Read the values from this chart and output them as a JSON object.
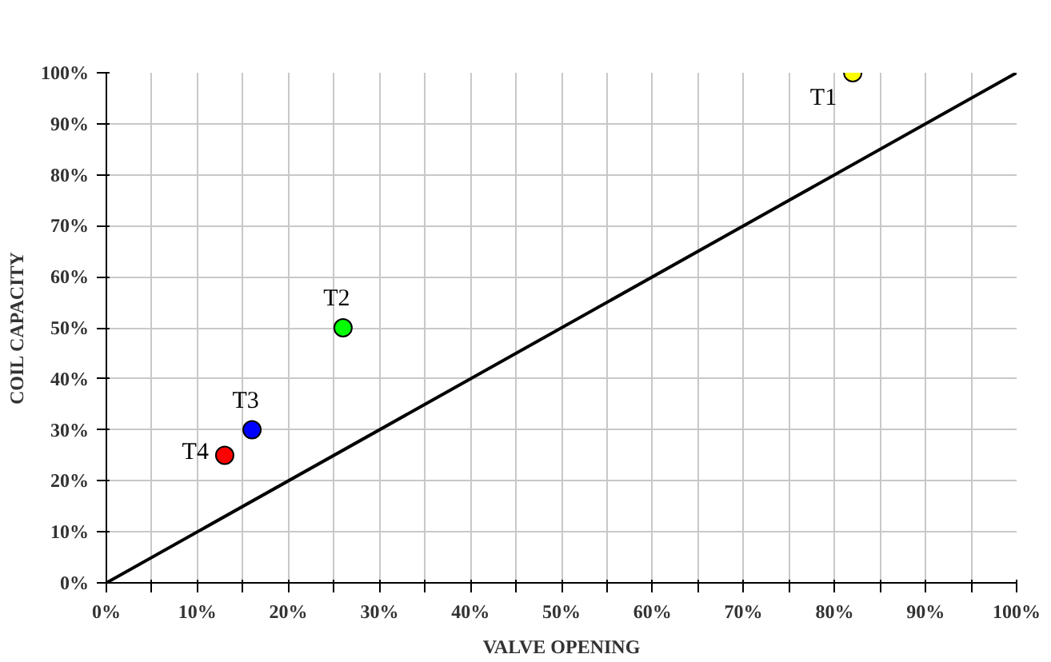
{
  "chart_data": {
    "type": "scatter",
    "xlabel": "VALVE OPENING",
    "ylabel": "COIL CAPACITY",
    "xlim": [
      0,
      100
    ],
    "ylim": [
      0,
      100
    ],
    "xticks": [
      {
        "value": 0,
        "label": "0%"
      },
      {
        "value": 5,
        "label": null
      },
      {
        "value": 10,
        "label": "10%"
      },
      {
        "value": 15,
        "label": null
      },
      {
        "value": 20,
        "label": "20%"
      },
      {
        "value": 25,
        "label": null
      },
      {
        "value": 30,
        "label": "30%"
      },
      {
        "value": 35,
        "label": null
      },
      {
        "value": 40,
        "label": "40%"
      },
      {
        "value": 45,
        "label": null
      },
      {
        "value": 50,
        "label": "50%"
      },
      {
        "value": 55,
        "label": null
      },
      {
        "value": 60,
        "label": "60%"
      },
      {
        "value": 65,
        "label": null
      },
      {
        "value": 70,
        "label": "70%"
      },
      {
        "value": 75,
        "label": null
      },
      {
        "value": 80,
        "label": "80%"
      },
      {
        "value": 85,
        "label": null
      },
      {
        "value": 90,
        "label": "90%"
      },
      {
        "value": 95,
        "label": null
      },
      {
        "value": 100,
        "label": "100%"
      }
    ],
    "yticks": [
      {
        "value": 0,
        "label": "0%"
      },
      {
        "value": 10,
        "label": "10%"
      },
      {
        "value": 20,
        "label": "20%"
      },
      {
        "value": 30,
        "label": "30%"
      },
      {
        "value": 40,
        "label": "40%"
      },
      {
        "value": 50,
        "label": "50%"
      },
      {
        "value": 60,
        "label": "60%"
      },
      {
        "value": 70,
        "label": "70%"
      },
      {
        "value": 80,
        "label": "80%"
      },
      {
        "value": 90,
        "label": "90%"
      },
      {
        "value": 100,
        "label": "100%"
      }
    ],
    "grid": true,
    "marker": "circle",
    "series": [
      {
        "type": "line",
        "color": "#000000",
        "x": [
          0,
          100
        ],
        "values": [
          0,
          100
        ],
        "marker": "none"
      },
      {
        "x": [
          82,
          26,
          16,
          13
        ],
        "values": [
          100,
          50,
          30,
          25
        ],
        "colors": [
          "#ffff00",
          "#00ff00",
          "#0000ff",
          "#ff0000"
        ]
      }
    ],
    "annotations": [
      {
        "text": "T1",
        "x": 82,
        "y": 100
      },
      {
        "text": "T2",
        "x": 26,
        "y": 50
      },
      {
        "text": "T3",
        "x": 16,
        "y": 30
      },
      {
        "text": "T4",
        "x": 13,
        "y": 25
      }
    ]
  }
}
